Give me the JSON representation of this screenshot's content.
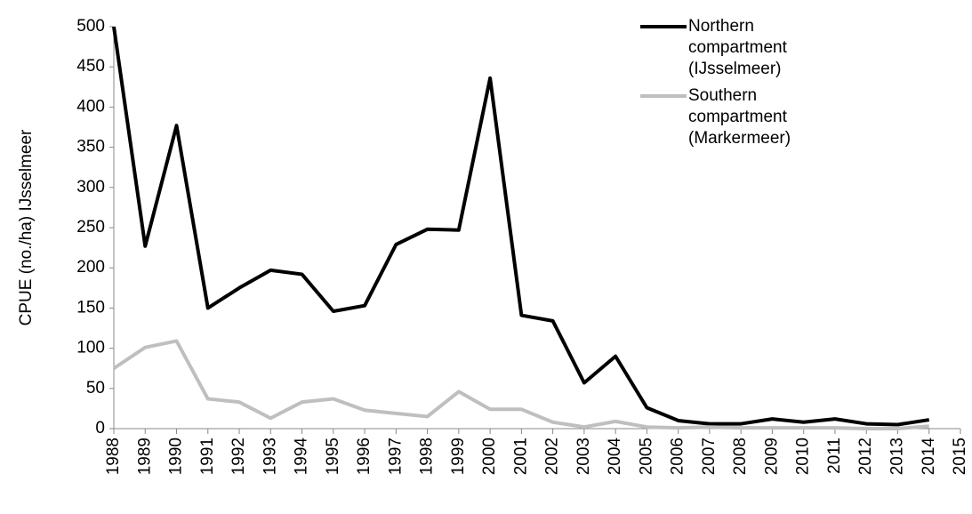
{
  "chart_data": {
    "type": "line",
    "y_label": "CPUE (no./ha) IJsselmeer",
    "x": [
      1988,
      1989,
      1990,
      1991,
      1992,
      1993,
      1994,
      1995,
      1996,
      1997,
      1998,
      1999,
      2000,
      2001,
      2002,
      2003,
      2004,
      2005,
      2006,
      2007,
      2008,
      2009,
      2010,
      2011,
      2012,
      2013,
      2014
    ],
    "series": [
      {
        "name": "Northern compartment (IJsselmeer)",
        "color": "#000000",
        "values": [
          500,
          227,
          377,
          150,
          175,
          197,
          192,
          146,
          153,
          229,
          248,
          247,
          436,
          141,
          134,
          57,
          90,
          26,
          10,
          6,
          6,
          12,
          8,
          12,
          6,
          5,
          11
        ]
      },
      {
        "name": "Southern compartment (Markermeer)",
        "color": "#bfbfbf",
        "values": [
          75,
          101,
          109,
          37,
          33,
          13,
          33,
          37,
          23,
          19,
          15,
          46,
          24,
          24,
          8,
          2,
          9,
          2,
          1,
          2,
          1,
          1,
          1,
          1,
          0,
          0,
          3
        ]
      }
    ],
    "xlim": [
      1988,
      2015
    ],
    "xticks": [
      1988,
      1989,
      1990,
      1991,
      1992,
      1993,
      1994,
      1995,
      1996,
      1997,
      1998,
      1999,
      2000,
      2001,
      2002,
      2003,
      2004,
      2005,
      2006,
      2007,
      2008,
      2009,
      2010,
      2011,
      2012,
      2013,
      2014,
      2015
    ],
    "ylim": [
      0,
      500
    ],
    "yticks": [
      0,
      50,
      100,
      150,
      200,
      250,
      300,
      350,
      400,
      450,
      500
    ],
    "grid": false
  }
}
